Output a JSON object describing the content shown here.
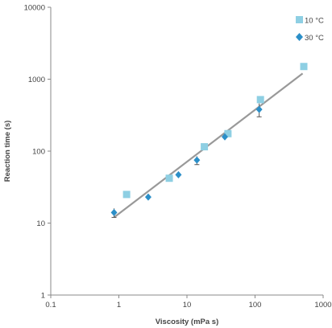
{
  "chart_data": {
    "type": "scatter",
    "xscale": "log",
    "yscale": "log",
    "xlim": [
      0.1,
      1000
    ],
    "ylim": [
      1,
      10000
    ],
    "xticks": [
      0.1,
      1,
      10,
      100,
      1000
    ],
    "xtick_labels": [
      "0.1",
      "1",
      "10",
      "100",
      "1000"
    ],
    "yticks": [
      1,
      10,
      100,
      1000,
      10000
    ],
    "ytick_labels": [
      "1",
      "10",
      "100",
      "1000",
      "10000"
    ],
    "xlabel": "Viscosity (mPa s)",
    "ylabel": "Reaction time (s)",
    "grid": false,
    "legend": "top-right",
    "series": [
      {
        "name": "10 °C",
        "marker": "square",
        "color": "#8ecfe3",
        "points": [
          {
            "x": 1.3,
            "y": 25
          },
          {
            "x": 5.5,
            "y": 42
          },
          {
            "x": 18,
            "y": 115
          },
          {
            "x": 40,
            "y": 175
          },
          {
            "x": 120,
            "y": 520
          },
          {
            "x": 520,
            "y": 1500
          }
        ]
      },
      {
        "name": "30 °C",
        "marker": "diamond",
        "color": "#2b8fc8",
        "points": [
          {
            "x": 0.85,
            "y": 14,
            "err": 2
          },
          {
            "x": 2.7,
            "y": 23
          },
          {
            "x": 7.5,
            "y": 47
          },
          {
            "x": 14,
            "y": 75,
            "err": 10
          },
          {
            "x": 36,
            "y": 158
          },
          {
            "x": 115,
            "y": 380,
            "err": 80
          }
        ]
      }
    ],
    "fit_line": {
      "color": "#999999",
      "x": [
        0.85,
        500
      ],
      "y": [
        12,
        1200
      ]
    }
  }
}
